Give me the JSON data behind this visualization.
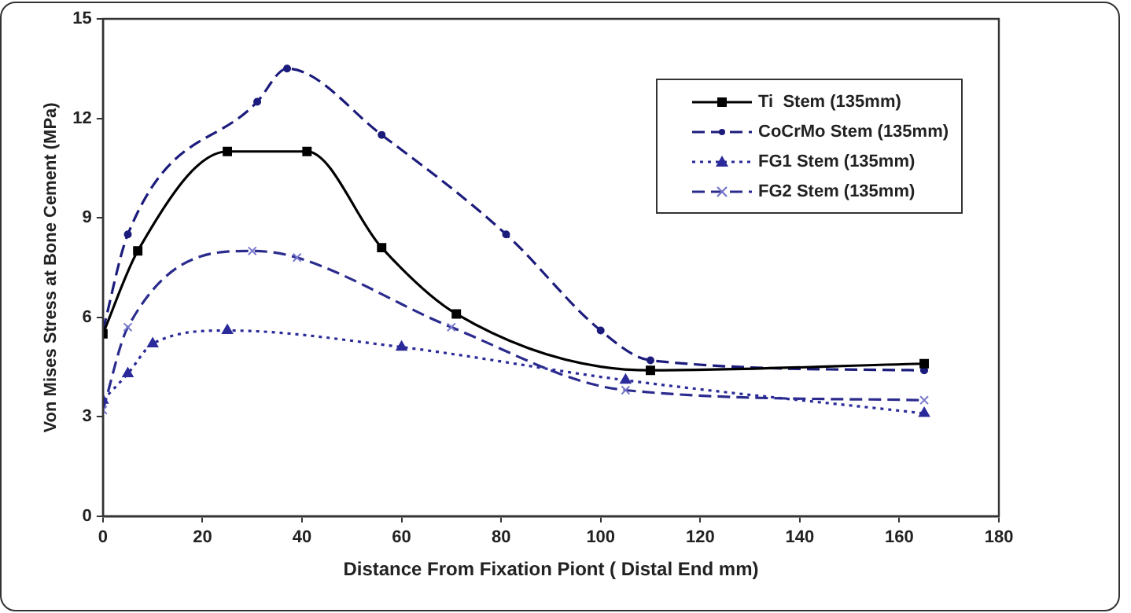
{
  "chart_data": {
    "type": "line",
    "xlabel": "Distance From Fixation Piont ( Distal End mm)",
    "ylabel": "Von Mises Stress at Bone Cement (MPa)",
    "xlim": [
      0,
      180
    ],
    "xticks": [
      0,
      20,
      40,
      60,
      80,
      100,
      120,
      140,
      160,
      180
    ],
    "ylim": [
      0,
      15
    ],
    "yticks": [
      0,
      3,
      6,
      9,
      12,
      15
    ],
    "grid": false,
    "legend": "top right",
    "series": [
      {
        "name": "Ti  Stem (135mm)",
        "color": "#000000",
        "marker": "square",
        "line_style": "solid",
        "x": [
          0,
          7,
          25,
          41,
          56,
          71,
          110,
          165
        ],
        "values": [
          5.5,
          8.0,
          11.0,
          11.0,
          8.1,
          6.1,
          4.4,
          4.6
        ]
      },
      {
        "name": "CoCrMo Stem (135mm)",
        "color": "#1c1c7c",
        "marker": "circle",
        "line_style": "dashed",
        "x": [
          0,
          5,
          31,
          37,
          56,
          81,
          100,
          110,
          165
        ],
        "values": [
          5.6,
          8.5,
          12.5,
          13.5,
          11.5,
          8.5,
          5.6,
          4.7,
          4.4
        ]
      },
      {
        "name": "FG1 Stem (135mm)",
        "color": "#2a2a9a",
        "marker": "triangle",
        "line_style": "dotted",
        "x": [
          0,
          5,
          10,
          25,
          60,
          105,
          165
        ],
        "values": [
          3.5,
          4.3,
          5.2,
          5.6,
          5.1,
          4.1,
          3.1
        ]
      },
      {
        "name": "FG2 Stem (135mm)",
        "color": "#2b2b8e",
        "marker": "cross",
        "line_style": "dashed",
        "x": [
          0,
          5,
          30,
          39,
          70,
          105,
          165
        ],
        "values": [
          3.2,
          5.7,
          8.0,
          7.8,
          5.7,
          3.8,
          3.5
        ]
      }
    ]
  }
}
